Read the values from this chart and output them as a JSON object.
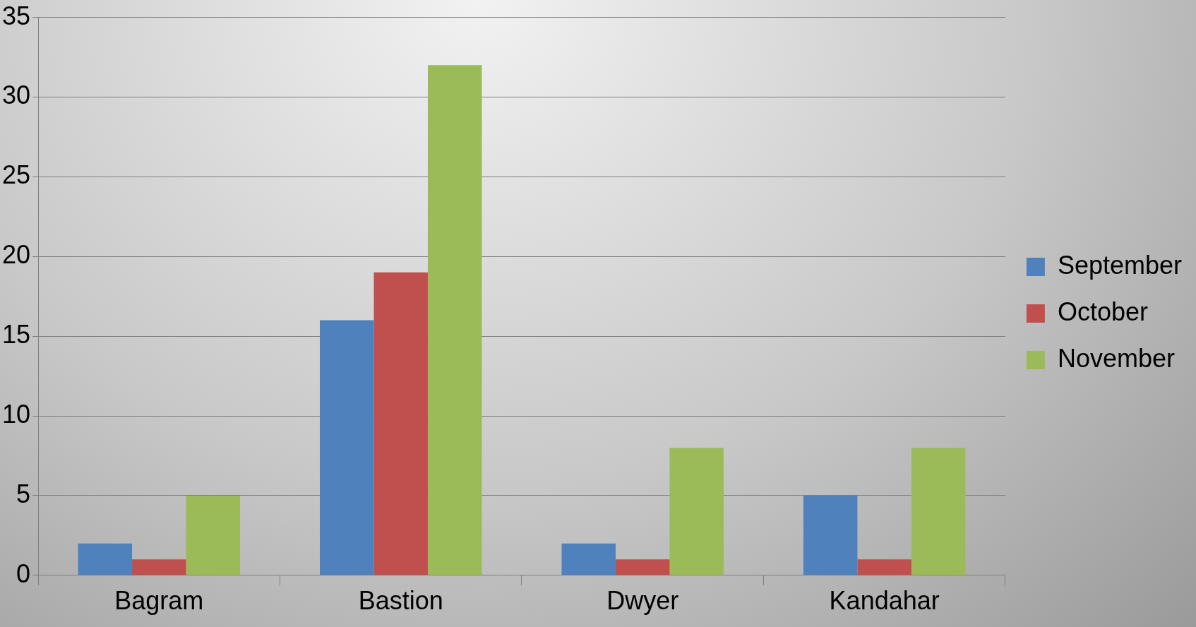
{
  "chart_data": {
    "type": "bar",
    "categories": [
      "Bagram",
      "Bastion",
      "Dwyer",
      "Kandahar"
    ],
    "series": [
      {
        "name": "September",
        "color": "#4f81bd",
        "values": [
          2,
          16,
          2,
          5
        ]
      },
      {
        "name": "October",
        "color": "#c0504d",
        "values": [
          1,
          19,
          1,
          1
        ]
      },
      {
        "name": "November",
        "color": "#9bbb59",
        "values": [
          5,
          32,
          8,
          8
        ]
      }
    ],
    "ylim": [
      0,
      35
    ],
    "yticks": [
      0,
      5,
      10,
      15,
      20,
      25,
      30,
      35
    ],
    "grid": "y",
    "legend": "right"
  }
}
